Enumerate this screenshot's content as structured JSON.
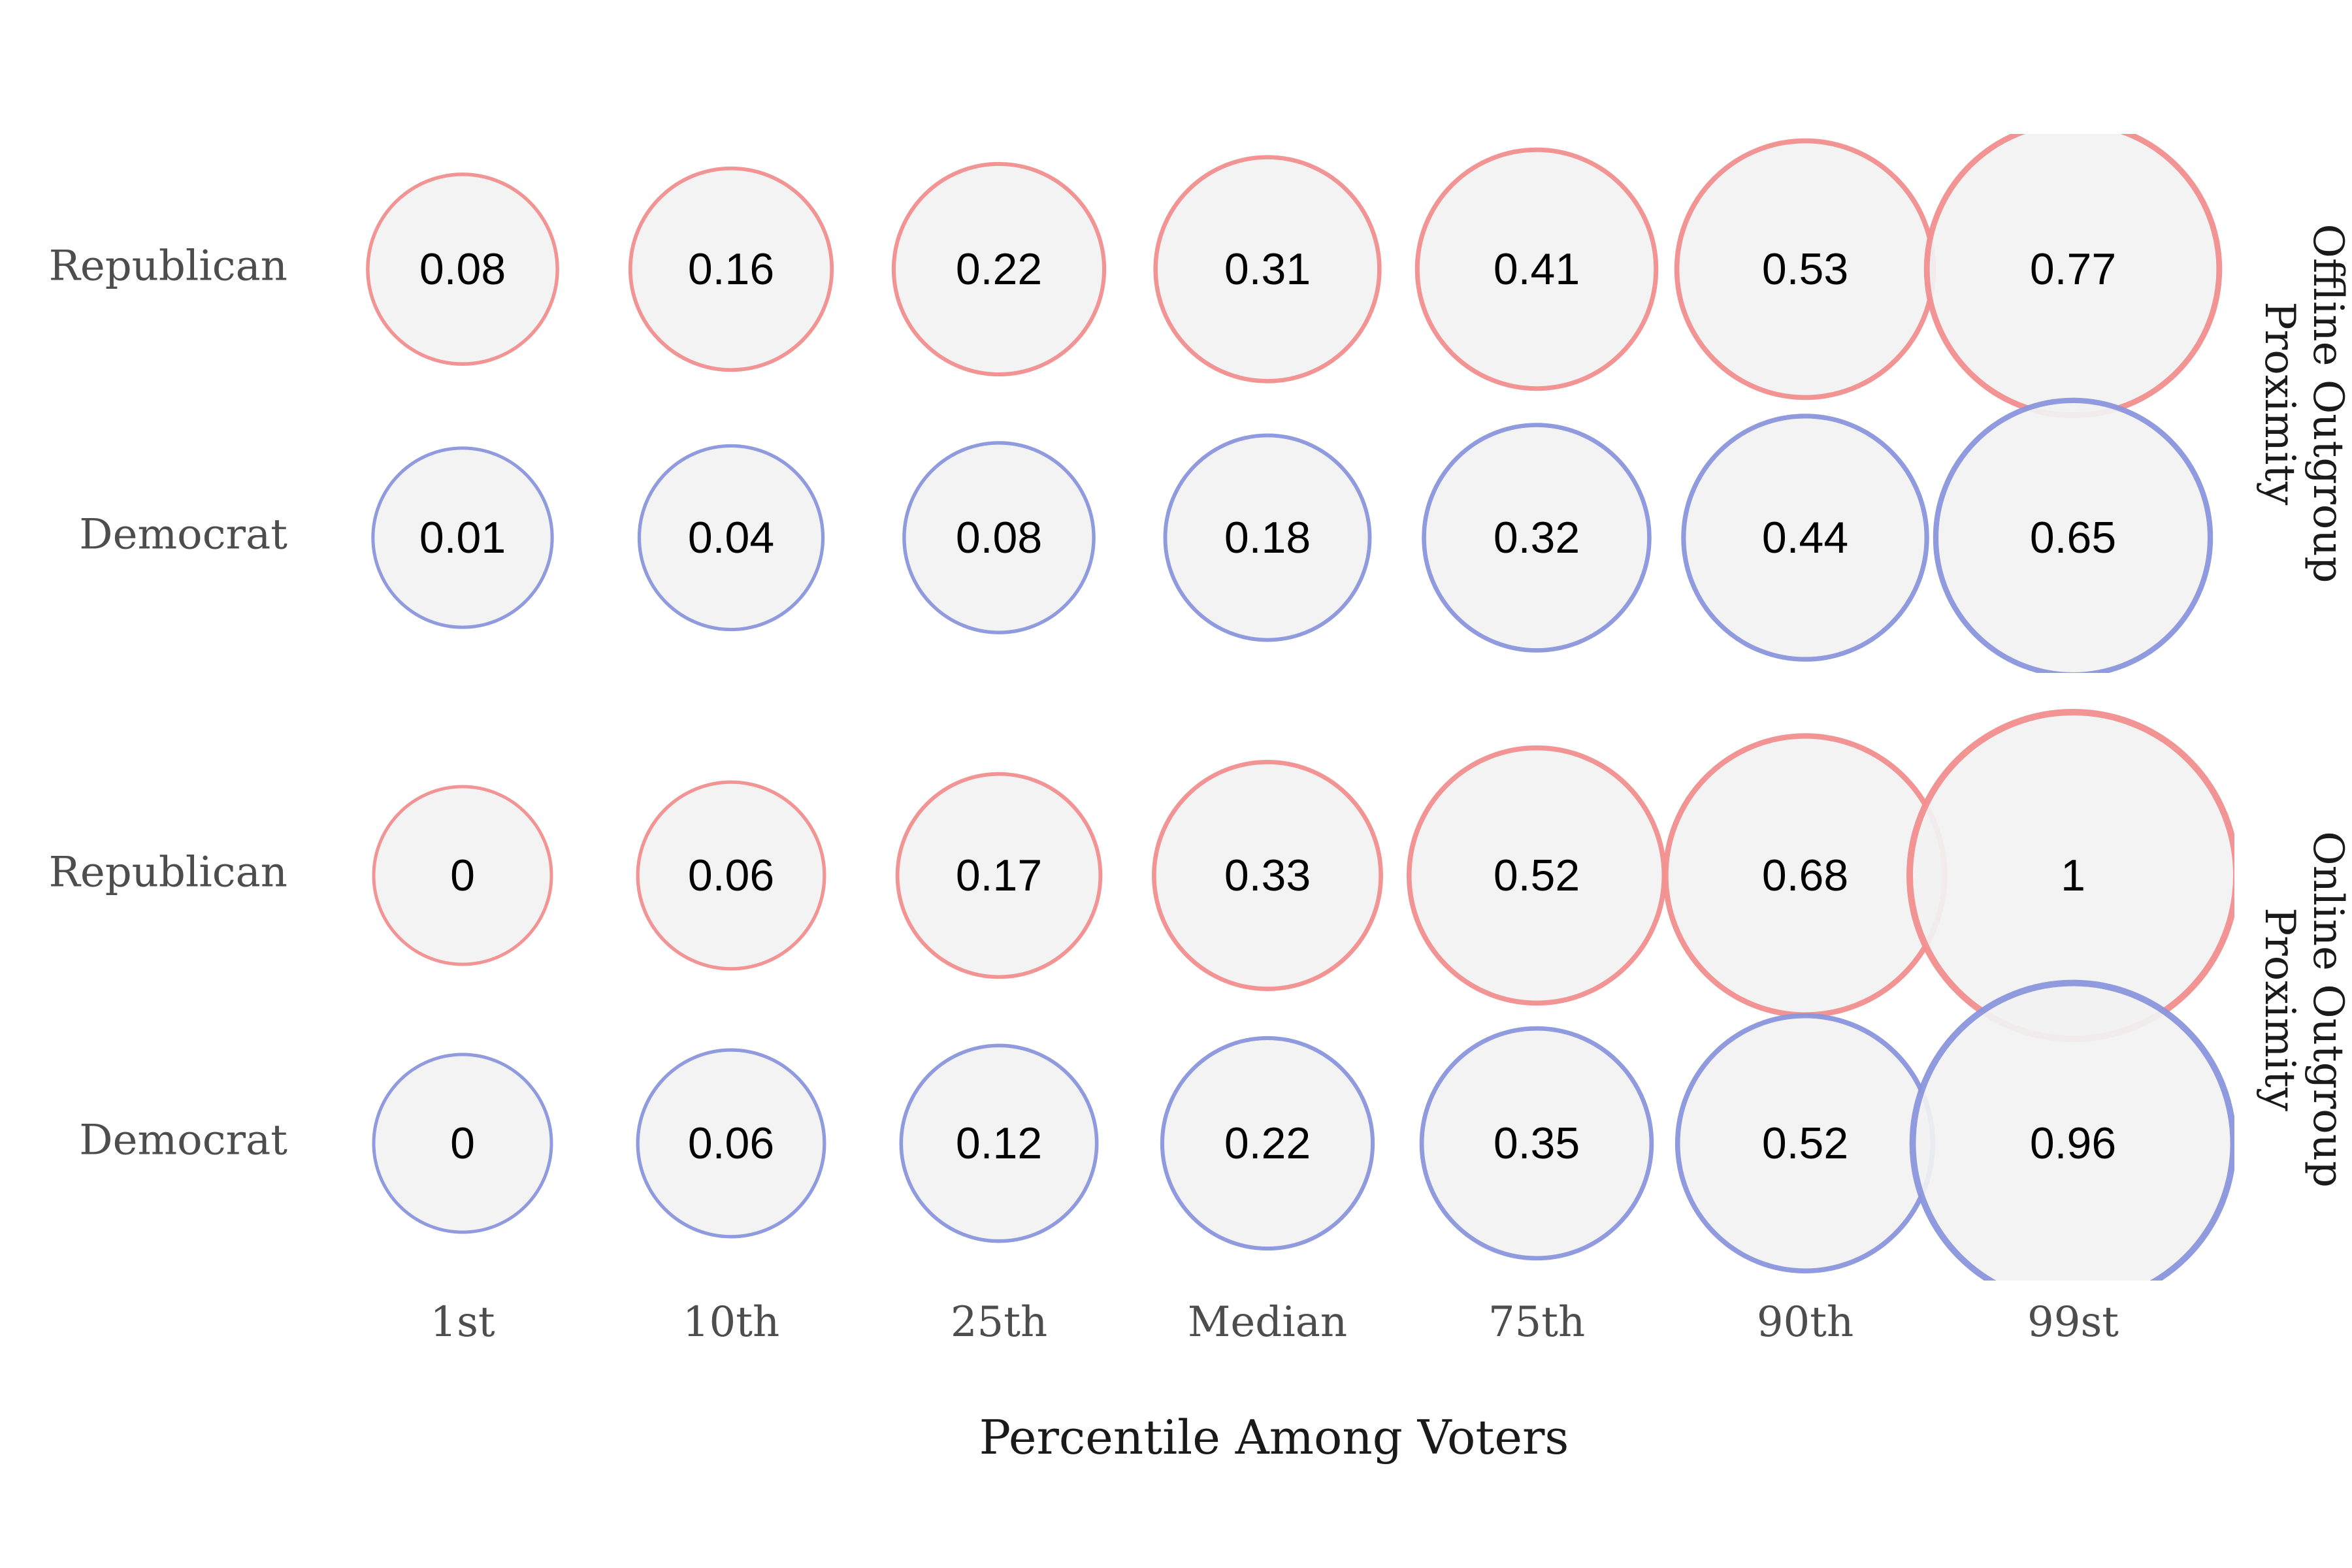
{
  "chart_data": {
    "type": "bubble-grid",
    "xlabel": "Percentile Among Voters",
    "categories": [
      "1st",
      "10th",
      "25th",
      "Median",
      "75th",
      "90th",
      "99st"
    ],
    "colors": {
      "Republican": "#f28e8e",
      "Democrat": "#8a95dc",
      "bubble_fill": "#f2f2f2"
    },
    "panels": [
      {
        "strip_label": [
          "Offline Outgroup",
          "Proximity"
        ],
        "series": [
          {
            "name": "Republican",
            "values": [
              0.08,
              0.16,
              0.22,
              0.31,
              0.41,
              0.53,
              0.77
            ]
          },
          {
            "name": "Democrat",
            "values": [
              0.01,
              0.04,
              0.08,
              0.18,
              0.32,
              0.44,
              0.65
            ]
          }
        ]
      },
      {
        "strip_label": [
          "Online Outgroup",
          "Proximity"
        ],
        "series": [
          {
            "name": "Republican",
            "values": [
              0,
              0.06,
              0.17,
              0.33,
              0.52,
              0.68,
              1
            ]
          },
          {
            "name": "Democrat",
            "values": [
              0,
              0.06,
              0.12,
              0.22,
              0.35,
              0.52,
              0.96
            ]
          }
        ]
      }
    ]
  }
}
